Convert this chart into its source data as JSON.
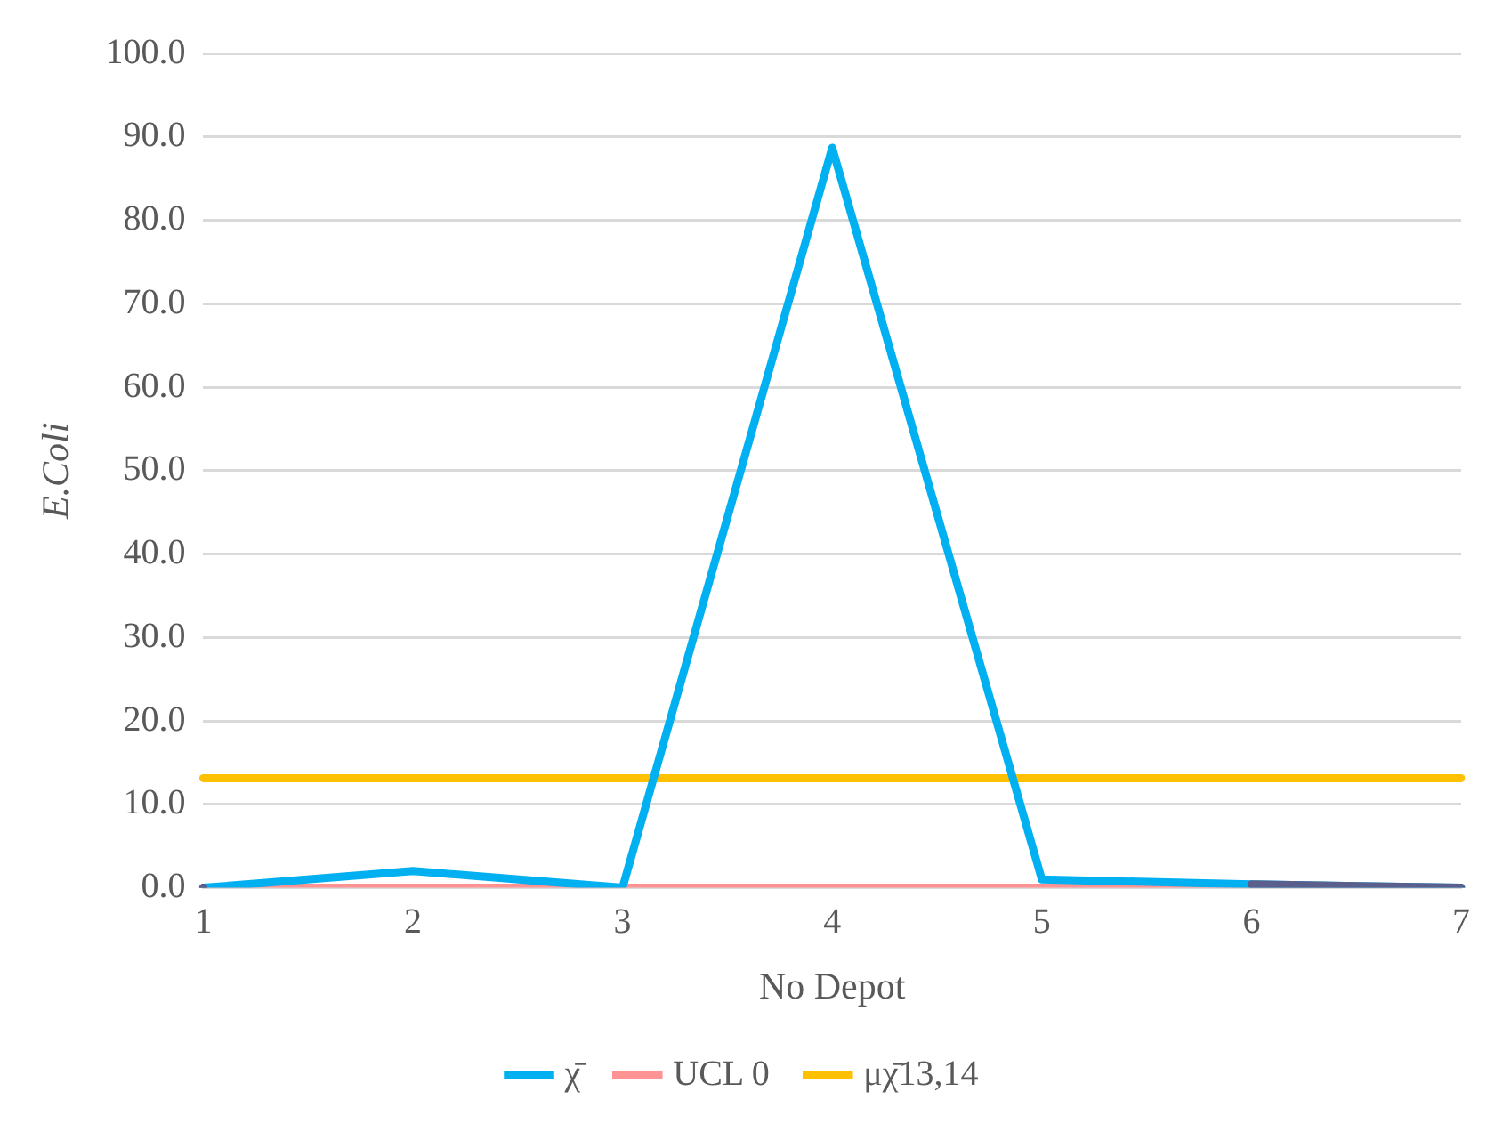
{
  "chart_data": {
    "type": "line",
    "xlabel": "No Depot",
    "ylabel": "E.Coli",
    "categories": [
      "1",
      "2",
      "3",
      "4",
      "5",
      "6",
      "7"
    ],
    "series": [
      {
        "name": "χ̄",
        "color": "#00b0f0",
        "values": [
          0,
          2.0,
          0,
          88.7,
          1.0,
          0.4,
          0
        ]
      },
      {
        "name": "UCL 0",
        "color": "#ff9393",
        "values": [
          0,
          0,
          0,
          0,
          0,
          0,
          0
        ]
      },
      {
        "name": "μχ̄13,14",
        "color": "#ffc000",
        "values": [
          13.14,
          13.14,
          13.14,
          13.14,
          13.14,
          13.14,
          13.14
        ]
      },
      {
        "color": "#5b5f8c",
        "values": [
          0,
          null,
          null,
          null,
          null,
          0.4,
          0
        ]
      }
    ],
    "ylim": [
      0,
      100
    ],
    "yticks": [
      {
        "value": 0,
        "label": "0.0"
      },
      {
        "value": 10,
        "label": "10.0"
      },
      {
        "value": 20,
        "label": "20.0"
      },
      {
        "value": 30,
        "label": "30.0"
      },
      {
        "value": 40,
        "label": "40.0"
      },
      {
        "value": 50,
        "label": "50.0"
      },
      {
        "value": 60,
        "label": "60.0"
      },
      {
        "value": 70,
        "label": "70.0"
      },
      {
        "value": 80,
        "label": "80.0"
      },
      {
        "value": 90,
        "label": "90.0"
      },
      {
        "value": 100,
        "label": "100.0"
      }
    ],
    "grid": "y",
    "legend": "bottom",
    "marker": "none",
    "line_style": "solid"
  }
}
